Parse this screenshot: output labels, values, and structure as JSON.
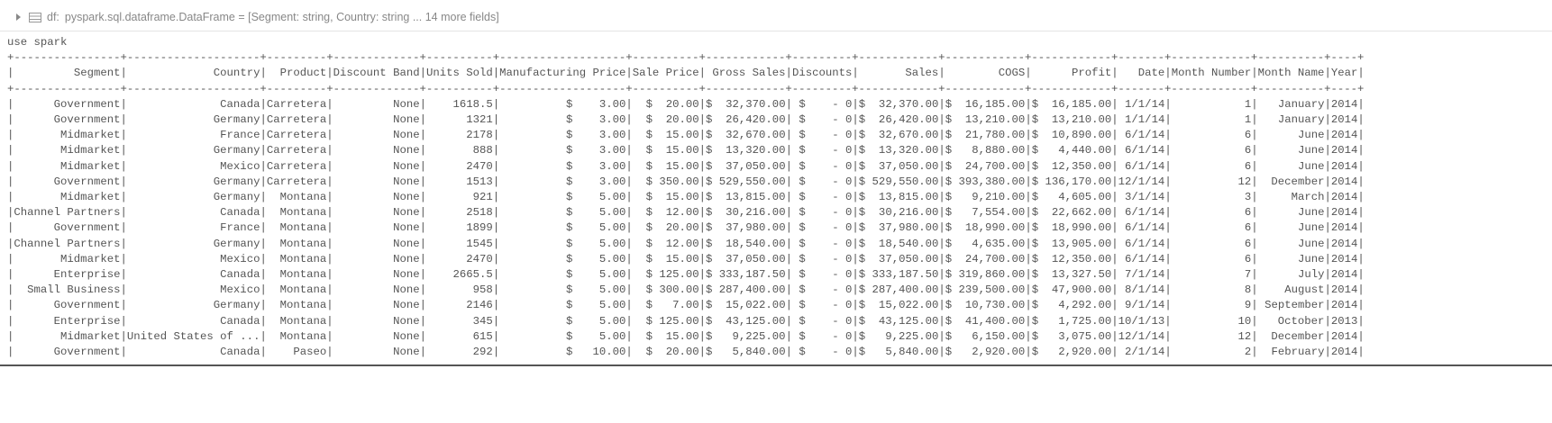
{
  "header": {
    "label": "df:",
    "schema": "pyspark.sql.dataframe.DataFrame = [Segment: string, Country: string ... 14 more fields]"
  },
  "command": "use spark",
  "table": {
    "columns": [
      "Segment",
      "Country",
      "Product",
      "Discount Band",
      "Units Sold",
      "Manufacturing Price",
      "Sale Price",
      "Gross Sales",
      "Discounts",
      "Sales",
      "COGS",
      "Profit",
      "Date",
      "Month Number",
      "Month Name",
      "Year"
    ],
    "rows": [
      [
        "Government",
        "Canada",
        "Carretera",
        "None",
        "1618.5",
        "$    3.00",
        "$  20.00",
        "$  32,370.00",
        "$    - 0",
        "$  32,370.00",
        "$  16,185.00",
        "$  16,185.00",
        "1/1/14",
        "1",
        "January",
        "2014"
      ],
      [
        "Government",
        "Germany",
        "Carretera",
        "None",
        "1321",
        "$    3.00",
        "$  20.00",
        "$  26,420.00",
        "$    - 0",
        "$  26,420.00",
        "$  13,210.00",
        "$  13,210.00",
        "1/1/14",
        "1",
        "January",
        "2014"
      ],
      [
        "Midmarket",
        "France",
        "Carretera",
        "None",
        "2178",
        "$    3.00",
        "$  15.00",
        "$  32,670.00",
        "$    - 0",
        "$  32,670.00",
        "$  21,780.00",
        "$  10,890.00",
        "6/1/14",
        "6",
        "June",
        "2014"
      ],
      [
        "Midmarket",
        "Germany",
        "Carretera",
        "None",
        "888",
        "$    3.00",
        "$  15.00",
        "$  13,320.00",
        "$    - 0",
        "$  13,320.00",
        "$   8,880.00",
        "$   4,440.00",
        "6/1/14",
        "6",
        "June",
        "2014"
      ],
      [
        "Midmarket",
        "Mexico",
        "Carretera",
        "None",
        "2470",
        "$    3.00",
        "$  15.00",
        "$  37,050.00",
        "$    - 0",
        "$  37,050.00",
        "$  24,700.00",
        "$  12,350.00",
        "6/1/14",
        "6",
        "June",
        "2014"
      ],
      [
        "Government",
        "Germany",
        "Carretera",
        "None",
        "1513",
        "$    3.00",
        "$ 350.00",
        "$ 529,550.00",
        "$    - 0",
        "$ 529,550.00",
        "$ 393,380.00",
        "$ 136,170.00",
        "12/1/14",
        "12",
        "December",
        "2014"
      ],
      [
        "Midmarket",
        "Germany",
        "Montana",
        "None",
        "921",
        "$    5.00",
        "$  15.00",
        "$  13,815.00",
        "$    - 0",
        "$  13,815.00",
        "$   9,210.00",
        "$   4,605.00",
        "3/1/14",
        "3",
        "March",
        "2014"
      ],
      [
        "Channel Partners",
        "Canada",
        "Montana",
        "None",
        "2518",
        "$    5.00",
        "$  12.00",
        "$  30,216.00",
        "$    - 0",
        "$  30,216.00",
        "$   7,554.00",
        "$  22,662.00",
        "6/1/14",
        "6",
        "June",
        "2014"
      ],
      [
        "Government",
        "France",
        "Montana",
        "None",
        "1899",
        "$    5.00",
        "$  20.00",
        "$  37,980.00",
        "$    - 0",
        "$  37,980.00",
        "$  18,990.00",
        "$  18,990.00",
        "6/1/14",
        "6",
        "June",
        "2014"
      ],
      [
        "Channel Partners",
        "Germany",
        "Montana",
        "None",
        "1545",
        "$    5.00",
        "$  12.00",
        "$  18,540.00",
        "$    - 0",
        "$  18,540.00",
        "$   4,635.00",
        "$  13,905.00",
        "6/1/14",
        "6",
        "June",
        "2014"
      ],
      [
        "Midmarket",
        "Mexico",
        "Montana",
        "None",
        "2470",
        "$    5.00",
        "$  15.00",
        "$  37,050.00",
        "$    - 0",
        "$  37,050.00",
        "$  24,700.00",
        "$  12,350.00",
        "6/1/14",
        "6",
        "June",
        "2014"
      ],
      [
        "Enterprise",
        "Canada",
        "Montana",
        "None",
        "2665.5",
        "$    5.00",
        "$ 125.00",
        "$ 333,187.50",
        "$    - 0",
        "$ 333,187.50",
        "$ 319,860.00",
        "$  13,327.50",
        "7/1/14",
        "7",
        "July",
        "2014"
      ],
      [
        "Small Business",
        "Mexico",
        "Montana",
        "None",
        "958",
        "$    5.00",
        "$ 300.00",
        "$ 287,400.00",
        "$    - 0",
        "$ 287,400.00",
        "$ 239,500.00",
        "$  47,900.00",
        "8/1/14",
        "8",
        "August",
        "2014"
      ],
      [
        "Government",
        "Germany",
        "Montana",
        "None",
        "2146",
        "$    5.00",
        "$   7.00",
        "$  15,022.00",
        "$    - 0",
        "$  15,022.00",
        "$  10,730.00",
        "$   4,292.00",
        "9/1/14",
        "9",
        "September",
        "2014"
      ],
      [
        "Enterprise",
        "Canada",
        "Montana",
        "None",
        "345",
        "$    5.00",
        "$ 125.00",
        "$  43,125.00",
        "$    - 0",
        "$  43,125.00",
        "$  41,400.00",
        "$   1,725.00",
        "10/1/13",
        "10",
        "October",
        "2013"
      ],
      [
        "Midmarket",
        "United States of ...",
        "Montana",
        "None",
        "615",
        "$    5.00",
        "$  15.00",
        "$   9,225.00",
        "$    - 0",
        "$   9,225.00",
        "$   6,150.00",
        "$   3,075.00",
        "12/1/14",
        "12",
        "December",
        "2014"
      ],
      [
        "Government",
        "Canada",
        "Paseo",
        "None",
        "292",
        "$   10.00",
        "$  20.00",
        "$   5,840.00",
        "$    - 0",
        "$   5,840.00",
        "$   2,920.00",
        "$   2,920.00",
        "2/1/14",
        "2",
        "February",
        "2014"
      ]
    ]
  }
}
